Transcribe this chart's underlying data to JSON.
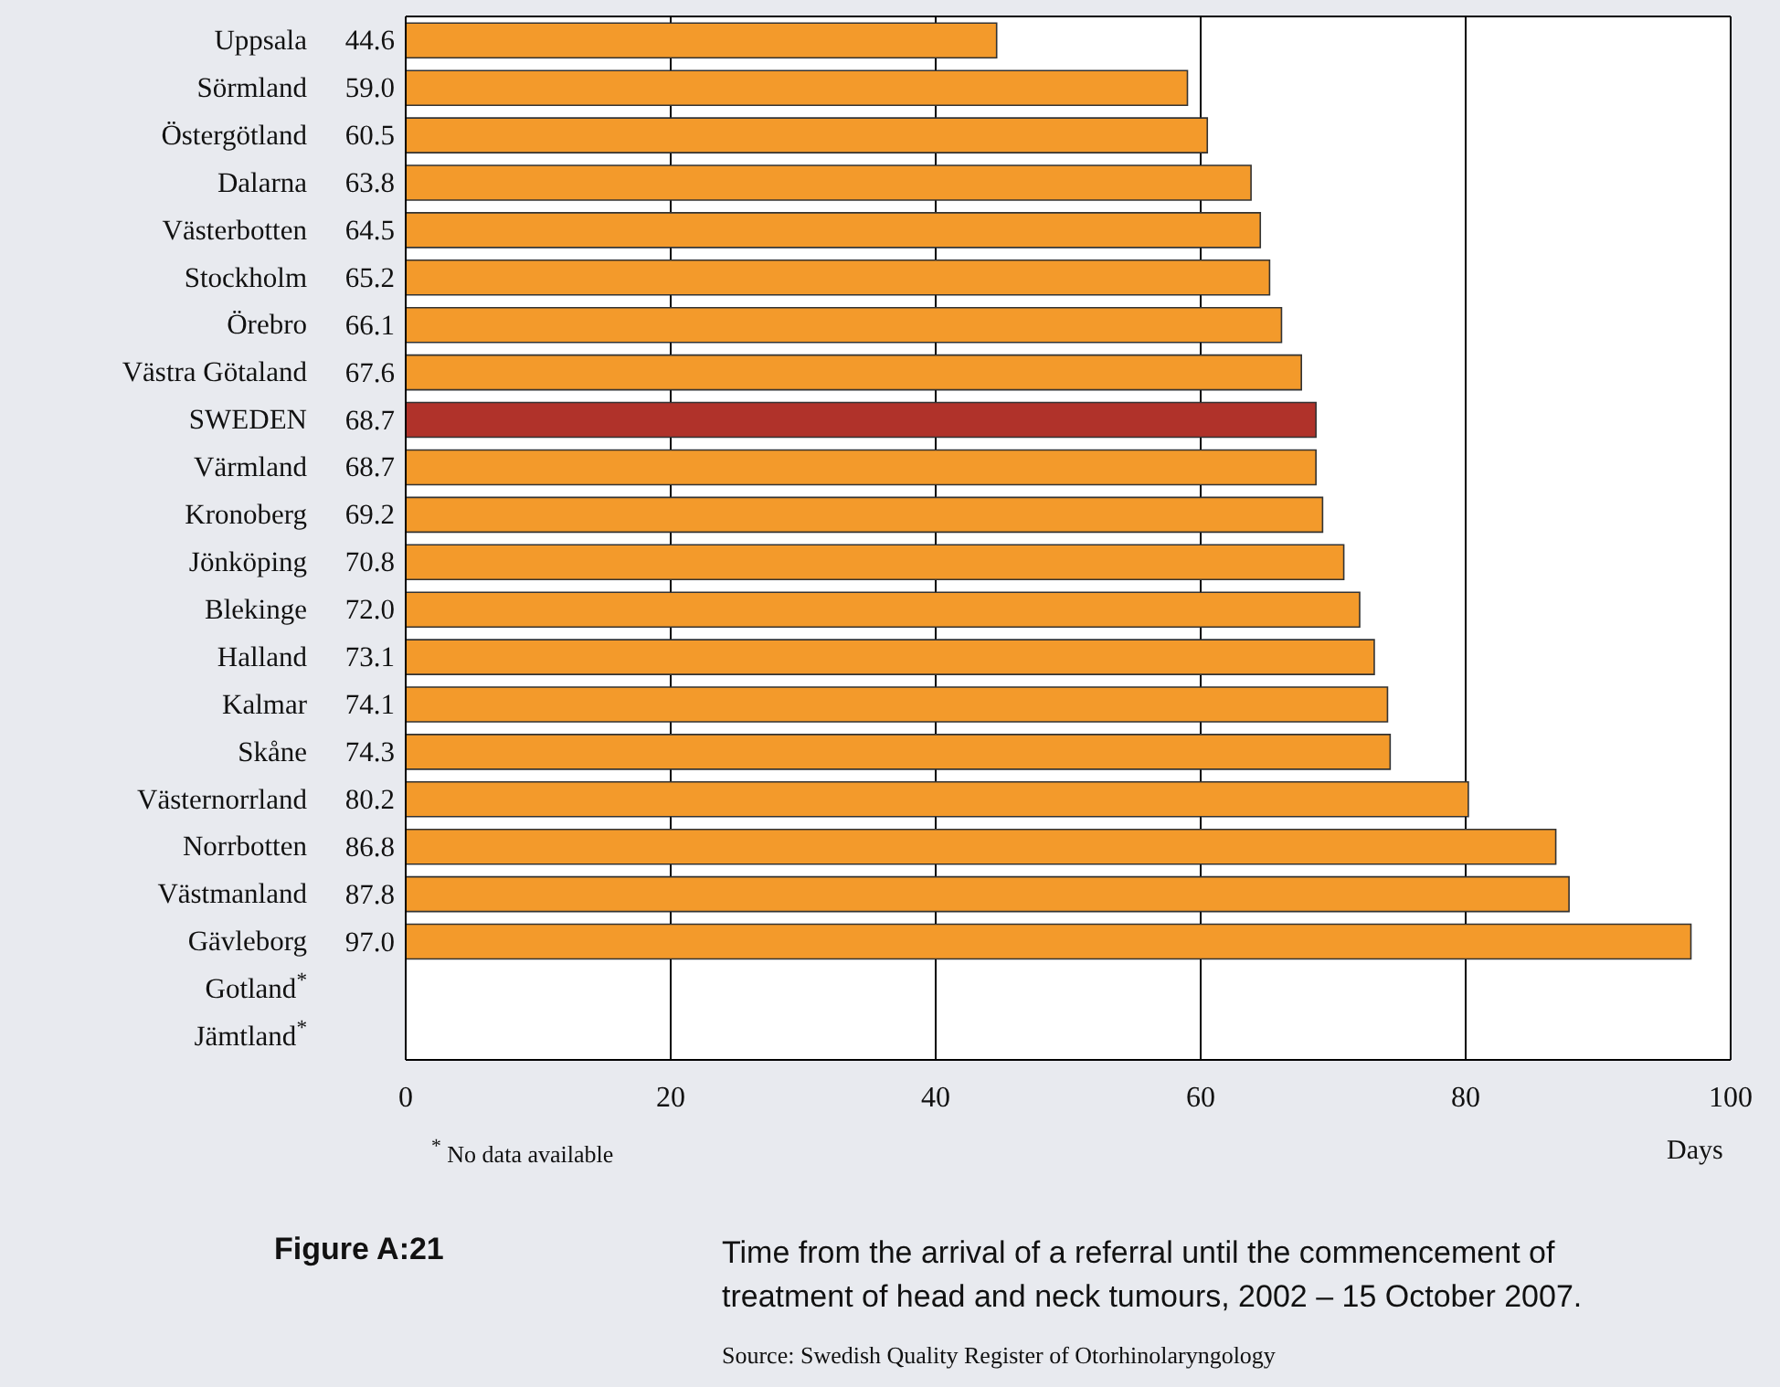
{
  "chart_data": {
    "type": "bar",
    "orientation": "horizontal",
    "title": "Figure A:21",
    "subtitle": "Time from the arrival of a referral until the commencement of treatment of head and neck tumours, 2002 – 15 October 2007.",
    "xlabel": "Days",
    "categories": [
      "Uppsala",
      "Sörmland",
      "Östergötland",
      "Dalarna",
      "Västerbotten",
      "Stockholm",
      "Örebro",
      "Västra Götaland",
      "SWEDEN",
      "Värmland",
      "Kronoberg",
      "Jönköping",
      "Blekinge",
      "Halland",
      "Kalmar",
      "Skåne",
      "Västernorrland",
      "Norrbotten",
      "Västmanland",
      "Gävleborg",
      "Gotland$^{*}$",
      "Jämtland$^{*}$"
    ],
    "values": [
      44.6,
      59.0,
      60.5,
      63.8,
      64.5,
      65.2,
      66.1,
      67.6,
      68.7,
      68.7,
      69.2,
      70.8,
      72.0,
      73.1,
      74.1,
      74.3,
      80.2,
      86.8,
      87.8,
      97.0,
      null,
      null
    ],
    "value_labels": [
      "44.6",
      "59.0",
      "60.5",
      "63.8",
      "64.5",
      "65.2",
      "66.1",
      "67.6",
      "68.7",
      "68.7",
      "69.2",
      "70.8",
      "72.0",
      "73.1",
      "74.1",
      "74.3",
      "80.2",
      "86.8",
      "87.8",
      "97.0",
      null,
      null
    ],
    "colors": [
      "#f39a2b",
      "#f39a2b",
      "#f39a2b",
      "#f39a2b",
      "#f39a2b",
      "#f39a2b",
      "#f39a2b",
      "#f39a2b",
      "#b0322a",
      "#f39a2b",
      "#f39a2b",
      "#f39a2b",
      "#f39a2b",
      "#f39a2b",
      "#f39a2b",
      "#f39a2b",
      "#f39a2b",
      "#f39a2b",
      "#f39a2b",
      "#f39a2b",
      "#f39a2b",
      "#f39a2b"
    ],
    "xlim": [
      0,
      100
    ],
    "xticks": [
      0,
      20,
      40,
      60,
      80,
      100
    ],
    "grid": "x",
    "legend": false,
    "annotations": [
      "$^{*}$ No data available",
      "Source: Swedish Quality Register of Otorhinolaryngology"
    ]
  }
}
